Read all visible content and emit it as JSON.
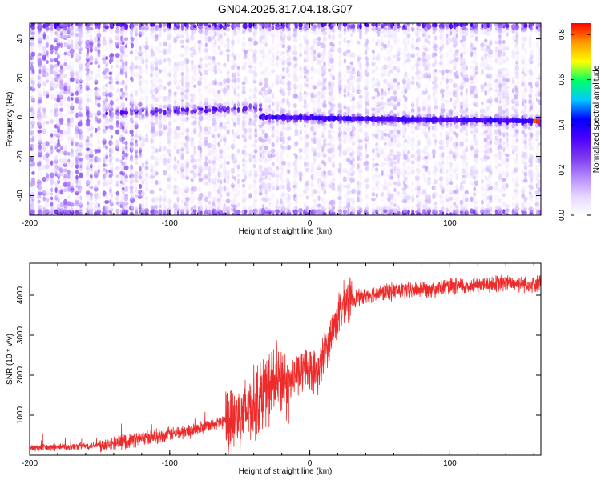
{
  "title": "GN04.2025.317.04.18.G07",
  "chart_data": [
    {
      "type": "heatmap",
      "xlabel": "Height of straight line (km)",
      "ylabel": "Frequency (Hz)",
      "xlim": [
        -200,
        165
      ],
      "ylim": [
        -50,
        48
      ],
      "xticks": [
        -200,
        -100,
        0,
        100
      ],
      "yticks": [
        -40,
        -20,
        0,
        20,
        40
      ],
      "colorbar": {
        "label": "Normalized spectral amplitude",
        "range": [
          0,
          0.85
        ],
        "ticks": [
          0.0,
          0.2,
          0.4,
          0.6,
          0.8
        ],
        "colormap": [
          "#ffffff",
          "#e6d5ff",
          "#b388ff",
          "#7c3aed",
          "#4c00ff",
          "#0000ff",
          "#00c8ff",
          "#00ff66",
          "#ffff00",
          "#ff9900",
          "#ff0000"
        ]
      },
      "features": [
        {
          "name": "",
          "x": [
            -150,
            -35
          ],
          "y_start": 2,
          "y_end": 5,
          "amplitude": 0.3
        },
        {
          "name": "",
          "x": [
            -35,
            165
          ],
          "y_start": 0,
          "y_end": -2,
          "amplitude": 0.35
        },
        {
          "name": "",
          "x": [
            -200,
            165
          ],
          "y_start": 47,
          "y_end": 47,
          "amplitude": 0.3
        },
        {
          "name": "",
          "x": [
            -200,
            165
          ],
          "y_start": -49,
          "y_end": -49,
          "amplitude": 0.25
        }
      ]
    },
    {
      "type": "line",
      "xlabel": "Height of straight line (km)",
      "ylabel": "SNR (10 * v/v)",
      "xlim": [
        -200,
        165
      ],
      "ylim": [
        0,
        4800
      ],
      "xticks": [
        -200,
        -100,
        0,
        100
      ],
      "yticks": [
        1000,
        2000,
        3000,
        4000
      ],
      "series": [
        {
          "color": "#ee2b2b",
          "x": [
            -200,
            -180,
            -160,
            -140,
            -120,
            -100,
            -80,
            -60,
            -45,
            -35,
            -25,
            -18,
            -15,
            -10,
            -5,
            0,
            5,
            10,
            15,
            20,
            25,
            30,
            40,
            50,
            60,
            80,
            100,
            120,
            140,
            165
          ],
          "y": [
            180,
            200,
            230,
            300,
            420,
            520,
            650,
            850,
            1100,
            1500,
            1850,
            1900,
            1700,
            2000,
            2100,
            2200,
            2000,
            2500,
            3000,
            3500,
            3800,
            3900,
            4000,
            4050,
            4100,
            4150,
            4200,
            4250,
            4300,
            4300
          ]
        }
      ]
    }
  ]
}
